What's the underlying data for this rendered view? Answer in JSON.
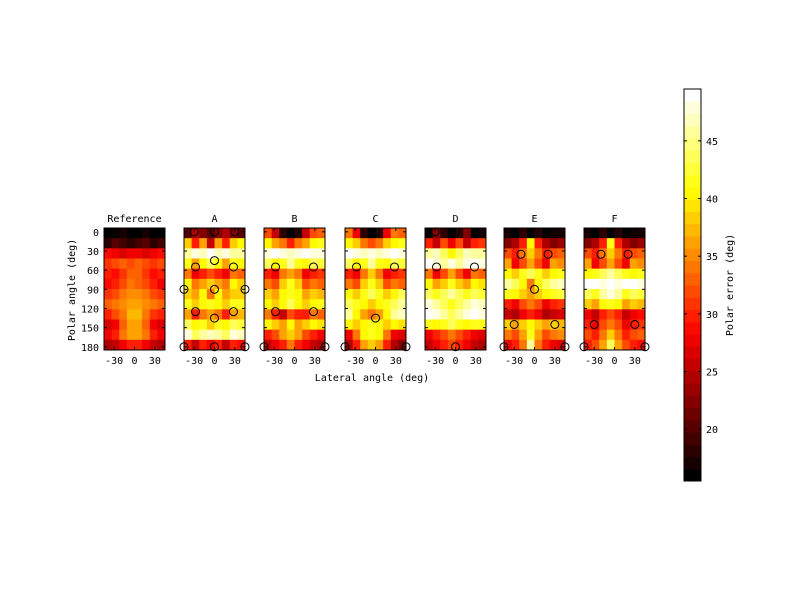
{
  "chart_data": {
    "type": "heatmap",
    "xlabel": "Lateral angle (deg)",
    "ylabel": "Polar angle (deg)",
    "xlim": [
      -45,
      45
    ],
    "ylim": [
      -6,
      185
    ],
    "xticks": [
      -30,
      0,
      30
    ],
    "yticks": [
      0,
      30,
      60,
      90,
      120,
      150,
      180
    ],
    "colorbar": {
      "label": "Polar error (deg)",
      "clim": [
        15.5,
        49.5
      ],
      "ticks": [
        20,
        25,
        30,
        35,
        40,
        45
      ],
      "colormap": "hot"
    },
    "panels": [
      {
        "title": "Reference",
        "markers": [],
        "values": [
          [
            16,
            16,
            17,
            16,
            16,
            17,
            16,
            16
          ],
          [
            18,
            20,
            19,
            18,
            19,
            20,
            18,
            19
          ],
          [
            29,
            28,
            27,
            28,
            28,
            27,
            28,
            29
          ],
          [
            31,
            32,
            33,
            32,
            33,
            32,
            31,
            32
          ],
          [
            30,
            29,
            31,
            33,
            33,
            31,
            29,
            30
          ],
          [
            29,
            30,
            32,
            34,
            33,
            32,
            30,
            28
          ],
          [
            31,
            32,
            34,
            35,
            35,
            34,
            32,
            31
          ],
          [
            33,
            34,
            35,
            36,
            36,
            35,
            34,
            33
          ],
          [
            30,
            32,
            34,
            37,
            37,
            34,
            31,
            30
          ],
          [
            27,
            28,
            33,
            36,
            36,
            33,
            28,
            27
          ],
          [
            28,
            30,
            34,
            36,
            36,
            34,
            30,
            28
          ],
          [
            25,
            26,
            28,
            30,
            30,
            28,
            26,
            25
          ]
        ]
      },
      {
        "title": "A",
        "markers": [
          [
            -30,
            0
          ],
          [
            0,
            0
          ],
          [
            30,
            0
          ],
          [
            0,
            45
          ],
          [
            -28,
            55
          ],
          [
            28,
            55
          ],
          [
            -45,
            90
          ],
          [
            0,
            90
          ],
          [
            45,
            90
          ],
          [
            -28,
            125
          ],
          [
            28,
            125
          ],
          [
            0,
            135
          ],
          [
            -45,
            180
          ],
          [
            0,
            180
          ],
          [
            45,
            180
          ]
        ],
        "values": [
          [
            20,
            24,
            22,
            20,
            22,
            24,
            22,
            20
          ],
          [
            38,
            30,
            36,
            26,
            36,
            30,
            38,
            40
          ],
          [
            46,
            48,
            47,
            49,
            47,
            48,
            46,
            46
          ],
          [
            42,
            36,
            40,
            44,
            40,
            36,
            42,
            40
          ],
          [
            34,
            28,
            30,
            32,
            30,
            28,
            34,
            33
          ],
          [
            40,
            34,
            36,
            38,
            36,
            34,
            40,
            38
          ],
          [
            38,
            36,
            40,
            34,
            40,
            36,
            38,
            38
          ],
          [
            42,
            38,
            40,
            42,
            40,
            38,
            42,
            41
          ],
          [
            36,
            30,
            34,
            36,
            34,
            30,
            36,
            37
          ],
          [
            44,
            40,
            42,
            38,
            42,
            40,
            44,
            43
          ],
          [
            48,
            44,
            46,
            47,
            46,
            44,
            48,
            47
          ],
          [
            30,
            26,
            30,
            28,
            30,
            26,
            30,
            29
          ]
        ]
      },
      {
        "title": "B",
        "markers": [
          [
            0,
            0
          ],
          [
            -28,
            55
          ],
          [
            28,
            55
          ],
          [
            -28,
            125
          ],
          [
            28,
            125
          ],
          [
            -45,
            180
          ],
          [
            45,
            180
          ]
        ],
        "values": [
          [
            32,
            26,
            18,
            16,
            18,
            26,
            32,
            33
          ],
          [
            40,
            36,
            34,
            30,
            34,
            36,
            40,
            41
          ],
          [
            48,
            49,
            48,
            47,
            48,
            49,
            48,
            48
          ],
          [
            44,
            40,
            42,
            46,
            42,
            40,
            44,
            43
          ],
          [
            30,
            28,
            34,
            36,
            34,
            28,
            30,
            31
          ],
          [
            34,
            32,
            38,
            42,
            38,
            32,
            34,
            33
          ],
          [
            38,
            36,
            40,
            42,
            40,
            36,
            38,
            37
          ],
          [
            40,
            38,
            40,
            44,
            40,
            38,
            40,
            41
          ],
          [
            34,
            30,
            26,
            32,
            30,
            30,
            34,
            33
          ],
          [
            40,
            38,
            36,
            40,
            36,
            38,
            40,
            39
          ],
          [
            30,
            32,
            36,
            38,
            36,
            32,
            30,
            28
          ],
          [
            26,
            28,
            30,
            34,
            30,
            28,
            26,
            24
          ]
        ]
      },
      {
        "title": "C",
        "markers": [
          [
            0,
            0
          ],
          [
            -28,
            55
          ],
          [
            28,
            55
          ],
          [
            0,
            135
          ],
          [
            -45,
            180
          ],
          [
            45,
            180
          ]
        ],
        "values": [
          [
            34,
            28,
            18,
            16,
            18,
            28,
            34,
            33
          ],
          [
            40,
            38,
            34,
            32,
            34,
            38,
            40,
            41
          ],
          [
            49,
            48,
            47,
            48,
            47,
            48,
            49,
            48
          ],
          [
            44,
            40,
            42,
            46,
            42,
            40,
            44,
            43
          ],
          [
            30,
            28,
            34,
            38,
            34,
            28,
            30,
            31
          ],
          [
            34,
            32,
            38,
            42,
            38,
            32,
            34,
            33
          ],
          [
            40,
            38,
            42,
            44,
            42,
            38,
            40,
            44
          ],
          [
            44,
            42,
            40,
            38,
            40,
            42,
            44,
            46
          ],
          [
            46,
            40,
            36,
            34,
            36,
            40,
            46,
            47
          ],
          [
            40,
            38,
            40,
            42,
            40,
            38,
            40,
            39
          ],
          [
            28,
            34,
            40,
            42,
            40,
            34,
            28,
            27
          ],
          [
            24,
            30,
            36,
            38,
            36,
            30,
            24,
            22
          ]
        ]
      },
      {
        "title": "D",
        "markers": [
          [
            -30,
            0
          ],
          [
            0,
            0
          ],
          [
            30,
            0
          ],
          [
            -28,
            55
          ],
          [
            28,
            55
          ],
          [
            0,
            180
          ]
        ],
        "values": [
          [
            16,
            22,
            18,
            16,
            18,
            22,
            16,
            17
          ],
          [
            30,
            26,
            32,
            28,
            32,
            26,
            30,
            31
          ],
          [
            46,
            47,
            44,
            40,
            44,
            47,
            46,
            46
          ],
          [
            49,
            48,
            46,
            48,
            46,
            48,
            49,
            48
          ],
          [
            34,
            28,
            32,
            36,
            32,
            28,
            34,
            33
          ],
          [
            40,
            36,
            38,
            42,
            38,
            36,
            40,
            39
          ],
          [
            44,
            42,
            44,
            46,
            44,
            42,
            44,
            43
          ],
          [
            48,
            46,
            44,
            42,
            44,
            46,
            48,
            47
          ],
          [
            49,
            48,
            46,
            44,
            46,
            48,
            49,
            48
          ],
          [
            42,
            40,
            42,
            44,
            42,
            40,
            42,
            41
          ],
          [
            28,
            30,
            32,
            34,
            32,
            30,
            28,
            27
          ],
          [
            26,
            28,
            30,
            32,
            30,
            28,
            26,
            25
          ]
        ]
      },
      {
        "title": "E",
        "markers": [
          [
            -30,
            0
          ],
          [
            0,
            0
          ],
          [
            30,
            0
          ],
          [
            -20,
            35
          ],
          [
            20,
            35
          ],
          [
            0,
            90
          ],
          [
            -30,
            145
          ],
          [
            30,
            145
          ],
          [
            -45,
            180
          ],
          [
            45,
            180
          ]
        ],
        "values": [
          [
            17,
            16,
            18,
            16,
            18,
            16,
            17,
            17
          ],
          [
            22,
            24,
            30,
            40,
            30,
            24,
            22,
            23
          ],
          [
            32,
            30,
            34,
            38,
            34,
            30,
            32,
            33
          ],
          [
            36,
            28,
            32,
            36,
            32,
            28,
            36,
            35
          ],
          [
            40,
            38,
            42,
            44,
            42,
            38,
            40,
            41
          ],
          [
            46,
            44,
            40,
            34,
            40,
            44,
            46,
            47
          ],
          [
            42,
            40,
            38,
            36,
            38,
            40,
            42,
            43
          ],
          [
            30,
            28,
            32,
            34,
            32,
            28,
            30,
            31
          ],
          [
            26,
            24,
            28,
            30,
            28,
            24,
            26,
            27
          ],
          [
            38,
            36,
            38,
            40,
            38,
            36,
            38,
            37
          ],
          [
            34,
            32,
            36,
            42,
            36,
            32,
            34,
            35
          ],
          [
            28,
            30,
            34,
            46,
            34,
            30,
            28,
            27
          ]
        ]
      },
      {
        "title": "F",
        "markers": [
          [
            -30,
            0
          ],
          [
            0,
            0
          ],
          [
            30,
            0
          ],
          [
            -20,
            35
          ],
          [
            20,
            35
          ],
          [
            -30,
            145
          ],
          [
            30,
            145
          ],
          [
            -45,
            180
          ],
          [
            45,
            180
          ]
        ],
        "values": [
          [
            17,
            16,
            18,
            16,
            18,
            16,
            17,
            17
          ],
          [
            22,
            24,
            30,
            42,
            30,
            24,
            22,
            23
          ],
          [
            32,
            30,
            34,
            38,
            34,
            30,
            32,
            33
          ],
          [
            36,
            28,
            32,
            36,
            32,
            28,
            36,
            35
          ],
          [
            40,
            42,
            44,
            46,
            44,
            42,
            40,
            41
          ],
          [
            49,
            49,
            48,
            49,
            48,
            49,
            49,
            48
          ],
          [
            44,
            42,
            46,
            48,
            46,
            42,
            44,
            43
          ],
          [
            38,
            36,
            40,
            42,
            40,
            36,
            38,
            37
          ],
          [
            28,
            26,
            30,
            32,
            30,
            26,
            28,
            29
          ],
          [
            30,
            28,
            32,
            34,
            32,
            28,
            30,
            31
          ],
          [
            32,
            30,
            34,
            38,
            34,
            30,
            32,
            33
          ],
          [
            30,
            32,
            36,
            44,
            36,
            32,
            30,
            29
          ]
        ]
      }
    ]
  }
}
